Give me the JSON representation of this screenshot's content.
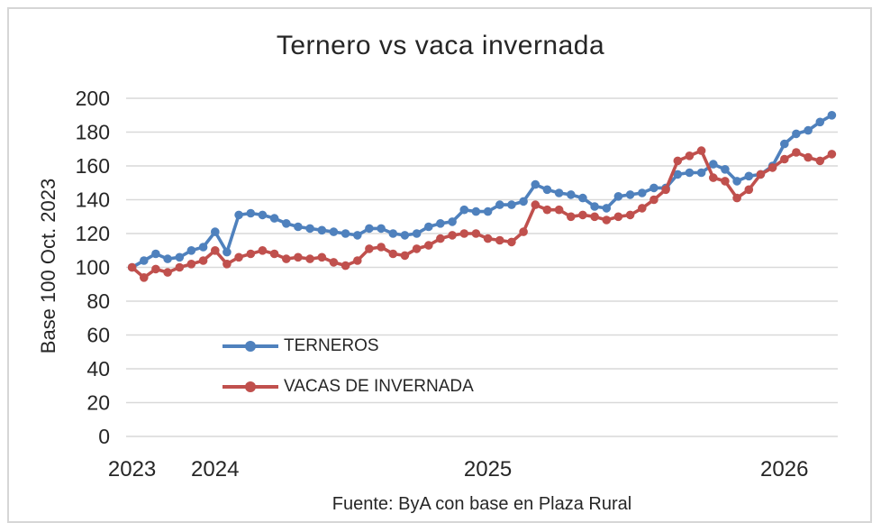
{
  "chart_data": {
    "type": "line",
    "title": "Ternero vs vaca invernada",
    "ylabel": "Base 100 Oct. 2023",
    "source_note": "Fuente: ByA con base en Plaza Rural",
    "ylim": [
      0,
      200
    ],
    "yticks": [
      0,
      20,
      40,
      60,
      80,
      100,
      120,
      140,
      160,
      180,
      200
    ],
    "grid": true,
    "legend_position": "inside-bottom-left",
    "axis_text_color": "#262626",
    "gridline_color": "#d9d9d9",
    "x_year_labels": [
      {
        "label": "2023",
        "point_index": 0
      },
      {
        "label": "2024",
        "point_index": 7
      },
      {
        "label": "2025",
        "point_index": 30
      },
      {
        "label": "2026",
        "point_index": 55
      }
    ],
    "series": [
      {
        "name": "TERNEROS",
        "color": "#4F81BD",
        "values": [
          100,
          104,
          108,
          105,
          106,
          110,
          112,
          121,
          109,
          131,
          132,
          131,
          129,
          126,
          124,
          123,
          122,
          121,
          120,
          119,
          123,
          123,
          120,
          119,
          120,
          124,
          126,
          127,
          134,
          133,
          133,
          137,
          137,
          139,
          149,
          146,
          144,
          143,
          141,
          136,
          135,
          142,
          143,
          144,
          147,
          147,
          155,
          156,
          156,
          161,
          158,
          151,
          154,
          155,
          160,
          173,
          179,
          181,
          186,
          190
        ]
      },
      {
        "name": "VACAS DE INVERNADA",
        "color": "#C0504D",
        "values": [
          100,
          94,
          99,
          97,
          100,
          102,
          104,
          110,
          102,
          106,
          108,
          110,
          108,
          105,
          106,
          105,
          106,
          103,
          101,
          104,
          111,
          112,
          108,
          107,
          111,
          113,
          117,
          119,
          120,
          120,
          117,
          116,
          115,
          121,
          137,
          134,
          134,
          130,
          131,
          130,
          128,
          130,
          131,
          135,
          140,
          146,
          163,
          166,
          169,
          153,
          151,
          141,
          146,
          155,
          159,
          164,
          168,
          165,
          163,
          167
        ]
      }
    ]
  }
}
